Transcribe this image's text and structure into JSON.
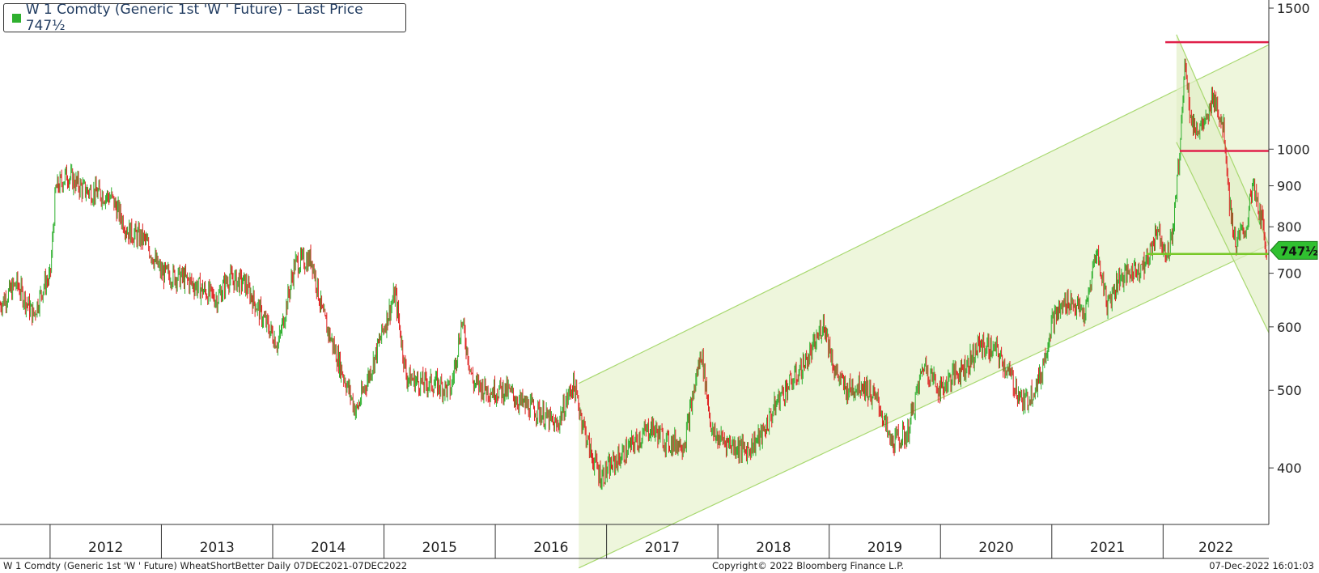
{
  "legend": {
    "label": "W 1 Comdty (Generic 1st 'W ' Future) - Last Price 747½",
    "swatch_color": "#2fb02f"
  },
  "footer": {
    "left": "W 1 Comdty (Generic 1st 'W ' Future) WheatShortBetter  Daily 07DEC2021-07DEC2022",
    "center": "Copyright© 2022 Bloomberg Finance L.P.",
    "right": "07-Dec-2022 16:01:03"
  },
  "chart_data": {
    "type": "candlestick",
    "scale": "log",
    "ylim": [
      340,
      1500
    ],
    "xlim": [
      2011.55,
      2022.95
    ],
    "y_ticks": [
      400,
      500,
      600,
      700,
      800,
      900,
      1000,
      1500
    ],
    "x_year_labels": [
      "2012",
      "2013",
      "2014",
      "2015",
      "2016",
      "2017",
      "2018",
      "2019",
      "2020",
      "2021",
      "2022"
    ],
    "last_price_label": "747½",
    "last_price": 747.5,
    "colors": {
      "up": "#2fb02f",
      "down": "#e02020",
      "channel_fill": "#eef6dc",
      "channel_line": "#a8d870",
      "resistance": "#e0204a",
      "support": "#78c828"
    },
    "series_anchors": [
      [
        2011.55,
        640
      ],
      [
        2011.7,
        680
      ],
      [
        2011.85,
        620
      ],
      [
        2011.95,
        680
      ],
      [
        2012.0,
        690
      ],
      [
        2012.05,
        890
      ],
      [
        2012.15,
        930
      ],
      [
        2012.3,
        890
      ],
      [
        2012.45,
        880
      ],
      [
        2012.55,
        870
      ],
      [
        2012.7,
        790
      ],
      [
        2012.85,
        770
      ],
      [
        2013.0,
        700
      ],
      [
        2013.2,
        690
      ],
      [
        2013.35,
        670
      ],
      [
        2013.5,
        650
      ],
      [
        2013.6,
        690
      ],
      [
        2013.75,
        680
      ],
      [
        2013.9,
        620
      ],
      [
        2014.05,
        570
      ],
      [
        2014.2,
        720
      ],
      [
        2014.35,
        730
      ],
      [
        2014.45,
        620
      ],
      [
        2014.6,
        540
      ],
      [
        2014.75,
        470
      ],
      [
        2014.9,
        540
      ],
      [
        2015.0,
        600
      ],
      [
        2015.1,
        660
      ],
      [
        2015.2,
        520
      ],
      [
        2015.35,
        510
      ],
      [
        2015.45,
        510
      ],
      [
        2015.6,
        500
      ],
      [
        2015.7,
        610
      ],
      [
        2015.8,
        510
      ],
      [
        2015.95,
        500
      ],
      [
        2016.1,
        500
      ],
      [
        2016.25,
        480
      ],
      [
        2016.4,
        470
      ],
      [
        2016.55,
        450
      ],
      [
        2016.7,
        510
      ],
      [
        2016.85,
        420
      ],
      [
        2016.95,
        390
      ],
      [
        2017.1,
        410
      ],
      [
        2017.25,
        430
      ],
      [
        2017.4,
        450
      ],
      [
        2017.55,
        430
      ],
      [
        2017.7,
        430
      ],
      [
        2017.85,
        560
      ],
      [
        2017.95,
        440
      ],
      [
        2018.1,
        430
      ],
      [
        2018.25,
        420
      ],
      [
        2018.4,
        440
      ],
      [
        2018.55,
        490
      ],
      [
        2018.7,
        520
      ],
      [
        2018.85,
        560
      ],
      [
        2018.95,
        610
      ],
      [
        2019.05,
        530
      ],
      [
        2019.15,
        500
      ],
      [
        2019.3,
        510
      ],
      [
        2019.45,
        480
      ],
      [
        2019.55,
        430
      ],
      [
        2019.7,
        440
      ],
      [
        2019.85,
        540
      ],
      [
        2020.0,
        500
      ],
      [
        2020.1,
        520
      ],
      [
        2020.25,
        540
      ],
      [
        2020.35,
        570
      ],
      [
        2020.5,
        560
      ],
      [
        2020.6,
        530
      ],
      [
        2020.75,
        480
      ],
      [
        2020.9,
        520
      ],
      [
        2021.0,
        610
      ],
      [
        2021.15,
        650
      ],
      [
        2021.3,
        620
      ],
      [
        2021.4,
        750
      ],
      [
        2021.5,
        640
      ],
      [
        2021.6,
        690
      ],
      [
        2021.7,
        700
      ],
      [
        2021.85,
        720
      ],
      [
        2021.95,
        800
      ],
      [
        2022.0,
        760
      ],
      [
        2022.05,
        740
      ],
      [
        2022.1,
        820
      ],
      [
        2022.15,
        1000
      ],
      [
        2022.2,
        1300
      ],
      [
        2022.25,
        1080
      ],
      [
        2022.3,
        1060
      ],
      [
        2022.4,
        1080
      ],
      [
        2022.45,
        1180
      ],
      [
        2022.55,
        1050
      ],
      [
        2022.6,
        850
      ],
      [
        2022.65,
        760
      ],
      [
        2022.75,
        800
      ],
      [
        2022.8,
        900
      ],
      [
        2022.85,
        850
      ],
      [
        2022.9,
        800
      ],
      [
        2022.93,
        747.5
      ]
    ],
    "annotations": {
      "resistance_high": {
        "price": 1360,
        "x_start": 2022.02,
        "x_end": 2022.95
      },
      "resistance_mid": {
        "price": 995,
        "x_start": 2022.15,
        "x_end": 2022.95
      },
      "support": {
        "price": 740,
        "x_start": 2021.85,
        "x_end": 2022.95
      },
      "rising_channel": {
        "upper": [
          [
            2016.75,
            510
          ],
          [
            2022.95,
            1350
          ]
        ],
        "lower": [
          [
            2016.75,
            300
          ],
          [
            2022.95,
            760
          ]
        ]
      },
      "falling_channel": {
        "upper": [
          [
            2022.12,
            1390
          ],
          [
            2022.95,
            760
          ]
        ],
        "lower": [
          [
            2022.12,
            1020
          ],
          [
            2022.95,
            590
          ]
        ]
      }
    }
  }
}
